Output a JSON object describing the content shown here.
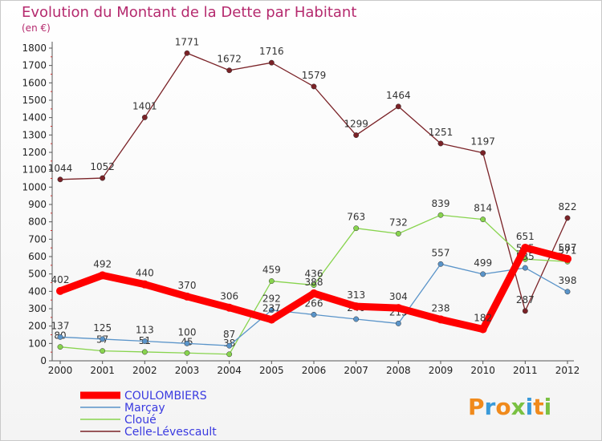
{
  "chart_data": {
    "type": "line",
    "title": "Evolution du Montant de la Dette par Habitant",
    "subtitle": "(en €)",
    "ylim": [
      0,
      1800
    ],
    "y_ticks": [
      0,
      100,
      200,
      300,
      400,
      500,
      600,
      700,
      800,
      900,
      1000,
      1100,
      1200,
      1300,
      1400,
      1500,
      1600,
      1700,
      1800
    ],
    "x": [
      "2000",
      "2001",
      "2002",
      "2003",
      "2004",
      "2005",
      "2006",
      "2007",
      "2008",
      "2009",
      "2010",
      "2011",
      "2012"
    ],
    "grid": false,
    "series": [
      {
        "name": "Celle-Lévescault",
        "color": "#7a2227",
        "values": [
          1044,
          1052,
          1401,
          1771,
          1672,
          1716,
          1579,
          1299,
          1464,
          1251,
          1197,
          287,
          822
        ]
      },
      {
        "name": "Cloué",
        "color": "#88d44e",
        "values": [
          80,
          57,
          51,
          45,
          38,
          459,
          436,
          763,
          732,
          839,
          814,
          585,
          571
        ]
      },
      {
        "name": "Marçay",
        "color": "#5a94c9",
        "values": [
          137,
          125,
          113,
          100,
          87,
          292,
          266,
          240,
          215,
          557,
          499,
          535,
          398
        ]
      },
      {
        "name": "COULOMBIERS",
        "color": "#ff0000",
        "values": [
          402,
          492,
          440,
          370,
          306,
          237,
          388,
          313,
          304,
          238,
          182,
          651,
          587
        ]
      }
    ],
    "legend": [
      {
        "name": "COULOMBIERS",
        "color": "#ff0000",
        "text_color": "#3a3ae0"
      },
      {
        "name": "Marçay",
        "color": "#5a94c9",
        "text_color": "#3a3ae0"
      },
      {
        "name": "Cloué",
        "color": "#88d44e",
        "text_color": "#3a3ae0"
      },
      {
        "name": "Celle-Lévescault",
        "color": "#7a2227",
        "text_color": "#3a3ae0"
      }
    ]
  },
  "brand": {
    "letters": [
      "P",
      "r",
      "o",
      "x",
      "i",
      "t",
      "i"
    ],
    "colors": [
      "#f08a1c",
      "#3a9ad9",
      "#f08a1c",
      "#7ac142",
      "#3a9ad9",
      "#f08a1c",
      "#7ac142"
    ]
  }
}
